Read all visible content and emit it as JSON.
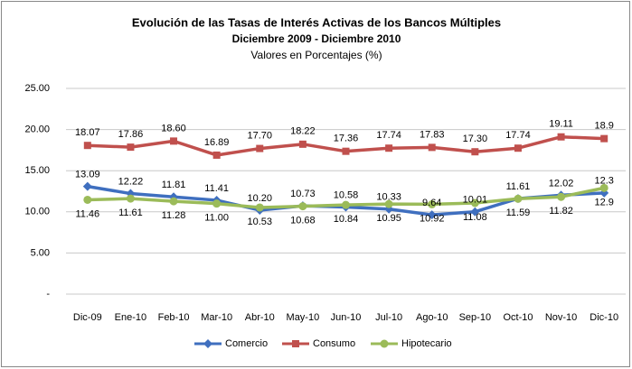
{
  "chart_data": {
    "type": "line",
    "title": "Evolución de las Tasas de Interés Activas de los Bancos Múltiples",
    "subtitle": "Diciembre 2009 - Diciembre 2010",
    "units_note": "Valores en Porcentajes (%)",
    "categories": [
      "Dic-09",
      "Ene-10",
      "Feb-10",
      "Mar-10",
      "Abr-10",
      "May-10",
      "Jun-10",
      "Jul-10",
      "Ago-10",
      "Sep-10",
      "Oct-10",
      "Nov-10",
      "Dic-10"
    ],
    "series": [
      {
        "name": "Comercio",
        "color": "#3f6fbf",
        "marker": "diamond",
        "values": [
          13.09,
          12.22,
          11.81,
          11.41,
          10.2,
          10.73,
          10.58,
          10.33,
          9.64,
          10.01,
          11.61,
          12.02,
          12.3
        ],
        "value_labels": [
          "13.09",
          "12.22",
          "11.81",
          "11.41",
          "10.20",
          "10.73",
          "10.58",
          "10.33",
          "9.64",
          "10.01",
          "11.61",
          "12.02",
          "12.3"
        ]
      },
      {
        "name": "Consumo",
        "color": "#c0504d",
        "marker": "square",
        "values": [
          18.07,
          17.86,
          18.6,
          16.89,
          17.7,
          18.22,
          17.36,
          17.74,
          17.83,
          17.3,
          17.74,
          19.11,
          18.9
        ],
        "value_labels": [
          "18.07",
          "17.86",
          "18.60",
          "16.89",
          "17.70",
          "18.22",
          "17.36",
          "17.74",
          "17.83",
          "17.30",
          "17.74",
          "19.11",
          "18.9"
        ]
      },
      {
        "name": "Hipotecario",
        "color": "#9bbb59",
        "marker": "circle",
        "values": [
          11.46,
          11.61,
          11.28,
          11.0,
          10.53,
          10.68,
          10.84,
          10.95,
          10.92,
          11.08,
          11.59,
          11.82,
          12.9
        ],
        "value_labels": [
          "11.46",
          "11.61",
          "11.28",
          "11.00",
          "10.53",
          "10.68",
          "10.84",
          "10.95",
          "10.92",
          "11.08",
          "11.59",
          "11.82",
          "12.9"
        ]
      }
    ],
    "ylim": [
      0,
      25
    ],
    "yticks": [
      {
        "value": 0,
        "label": "-"
      },
      {
        "value": 5,
        "label": "5.00"
      },
      {
        "value": 10,
        "label": "10.00"
      },
      {
        "value": 15,
        "label": "15.00"
      },
      {
        "value": 20,
        "label": "20.00"
      },
      {
        "value": 25,
        "label": "25.00"
      }
    ],
    "grid": true,
    "legend": "bottom"
  }
}
